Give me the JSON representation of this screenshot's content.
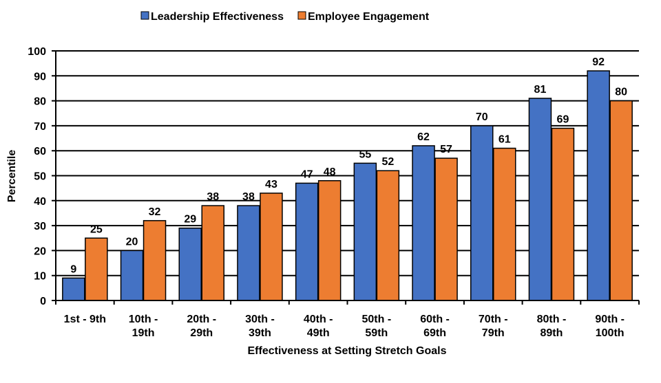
{
  "chart_data": {
    "type": "bar",
    "title": "",
    "xlabel": "Effectiveness at Setting Stretch Goals",
    "ylabel": "Percentile",
    "ylim": [
      0,
      100
    ],
    "yticks": [
      0,
      10,
      20,
      30,
      40,
      50,
      60,
      70,
      80,
      90,
      100
    ],
    "grid": true,
    "legend": "top",
    "categories": [
      [
        "1st - 9th"
      ],
      [
        "10th -",
        "19th"
      ],
      [
        "20th -",
        "29th"
      ],
      [
        "30th -",
        "39th"
      ],
      [
        "40th -",
        "49th"
      ],
      [
        "50th -",
        "59th"
      ],
      [
        "60th -",
        "69th"
      ],
      [
        "70th -",
        "79th"
      ],
      [
        "80th -",
        "89th"
      ],
      [
        "90th -",
        "100th"
      ]
    ],
    "series": [
      {
        "name": "Leadership Effectiveness",
        "color": "#4472C4",
        "values": [
          9,
          20,
          29,
          38,
          47,
          55,
          62,
          70,
          81,
          92
        ]
      },
      {
        "name": "Employee Engagement",
        "color": "#ED7D31",
        "values": [
          25,
          32,
          38,
          43,
          48,
          52,
          57,
          61,
          69,
          80
        ]
      }
    ]
  }
}
